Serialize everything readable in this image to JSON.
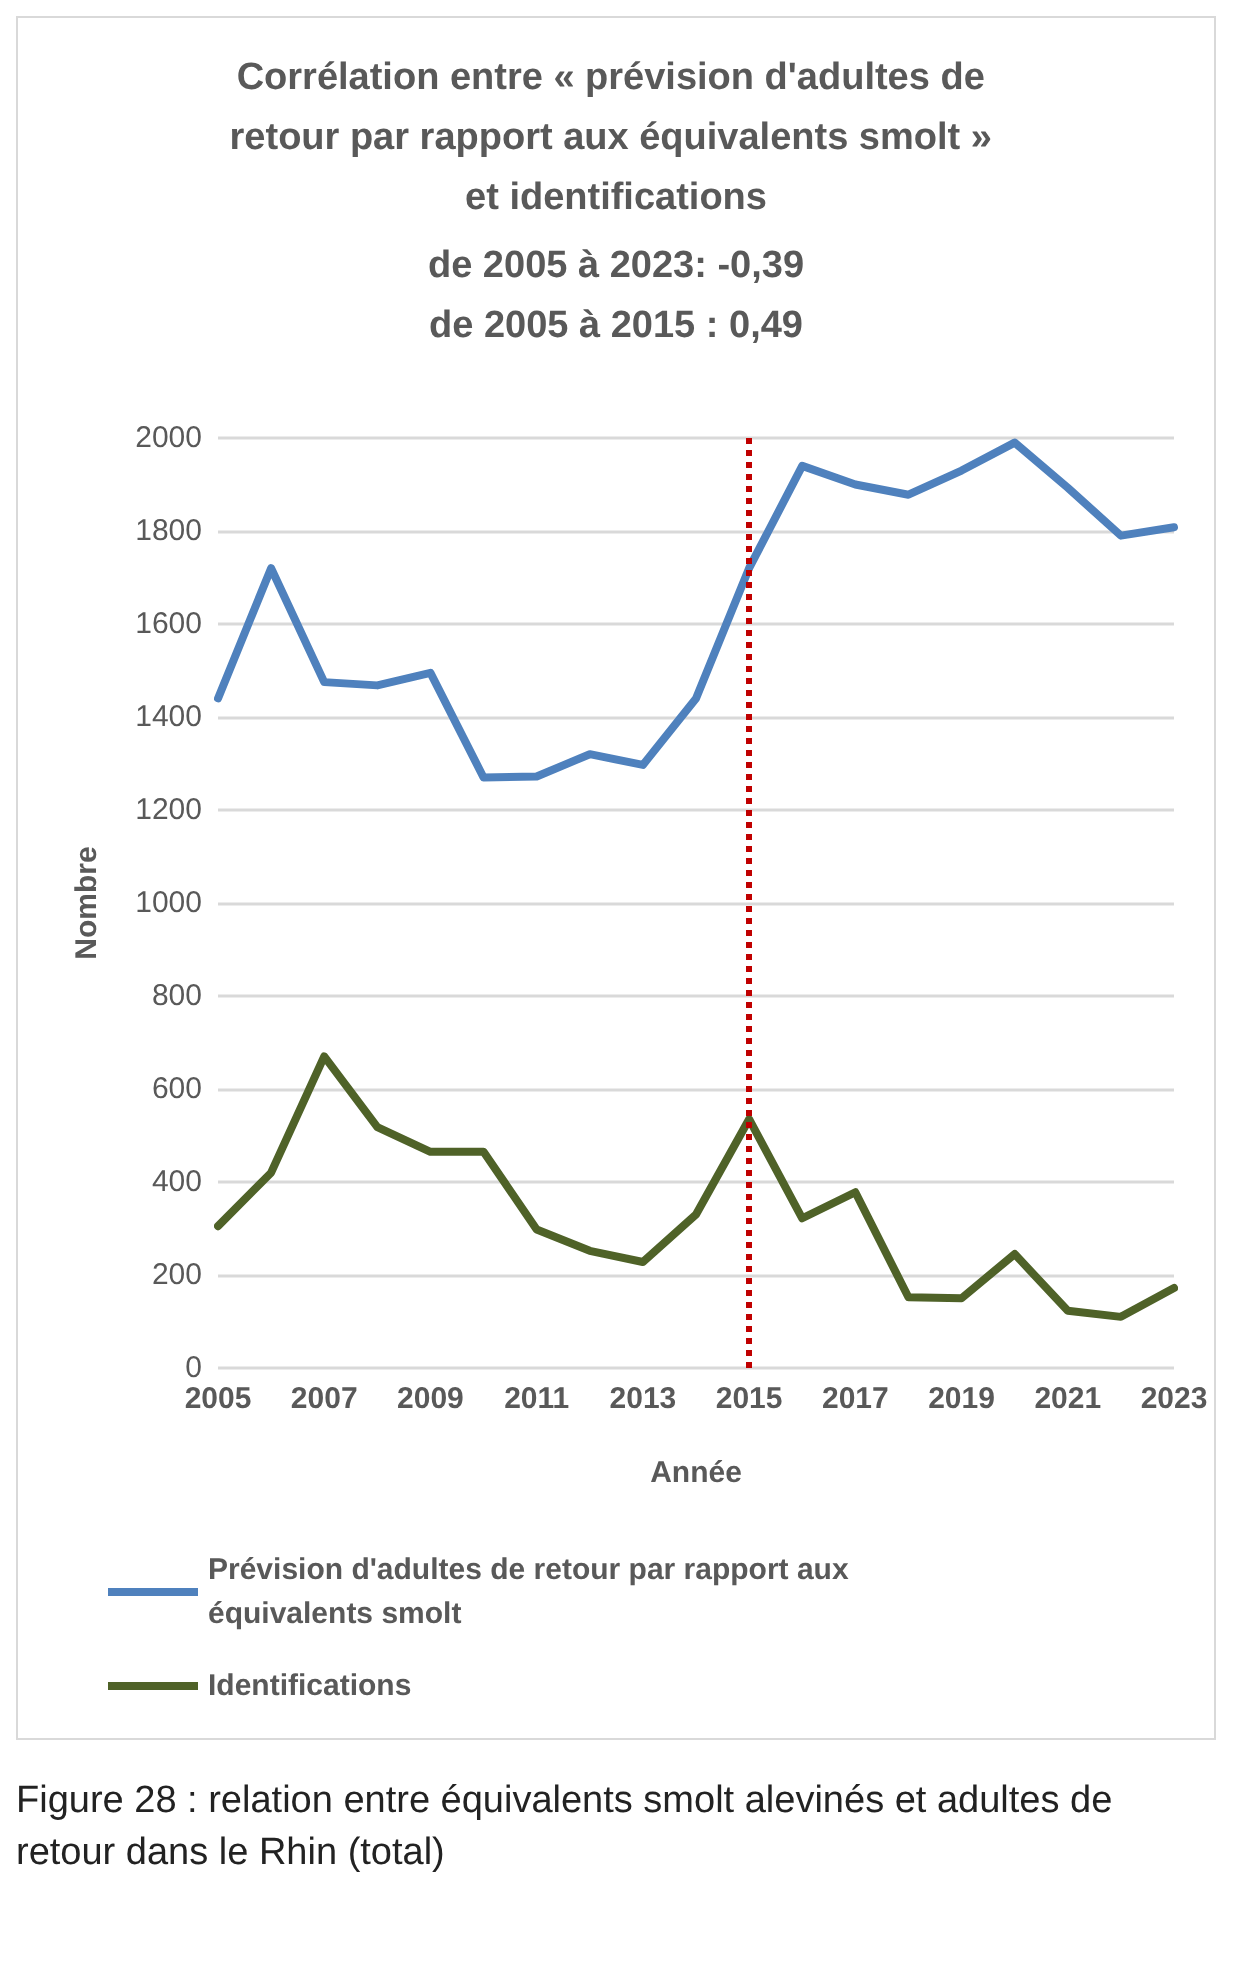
{
  "chart_data": {
    "type": "line",
    "title": "Corrélation entre « prévision d'adultes de retour par rapport aux équivalents smolt » et identifications",
    "subtitle": "de 2005 à 2023: -0,39\nde 2005 à 2015 : 0,49",
    "xlabel": "Année",
    "ylabel": "Nombre",
    "categories": [
      "2005",
      null,
      "2007",
      null,
      "2009",
      null,
      "2011",
      null,
      "2013",
      null,
      "2015",
      null,
      "2017",
      null,
      "2019",
      null,
      "2021",
      null,
      "2023"
    ],
    "series": [
      {
        "name": "Prévision d'adultes de retour par rapport aux équivalents smolt",
        "color": "#4f81bd",
        "values": [
          1440,
          1720,
          1475,
          1468,
          1495,
          1270,
          1272,
          1320,
          1297,
          1440,
          1720,
          1940,
          1900,
          1878,
          1930,
          1990,
          1893,
          1790,
          1808
        ]
      },
      {
        "name": "Identifications",
        "color": "#4f6228",
        "values": [
          305,
          420,
          670,
          518,
          465,
          465,
          298,
          252,
          228,
          330,
          535,
          322,
          378,
          152,
          150,
          245,
          123,
          110,
          172
        ]
      }
    ],
    "ylim": [
      0,
      2000
    ],
    "yticks": [
      0,
      200,
      400,
      600,
      800,
      1000,
      1200,
      1400,
      1600,
      1800,
      2000
    ],
    "ref_lines": [
      {
        "axis": "x",
        "value": "2015",
        "color": "#c00000",
        "line_style": "dotted"
      }
    ],
    "grid": "y",
    "legend": "bottom",
    "marker": "none",
    "line_style": "solid",
    "annotations": [
      "Figure 28 : relation entre équivalents smolt alevinés et adultes de retour dans le Rhin (total)"
    ]
  }
}
